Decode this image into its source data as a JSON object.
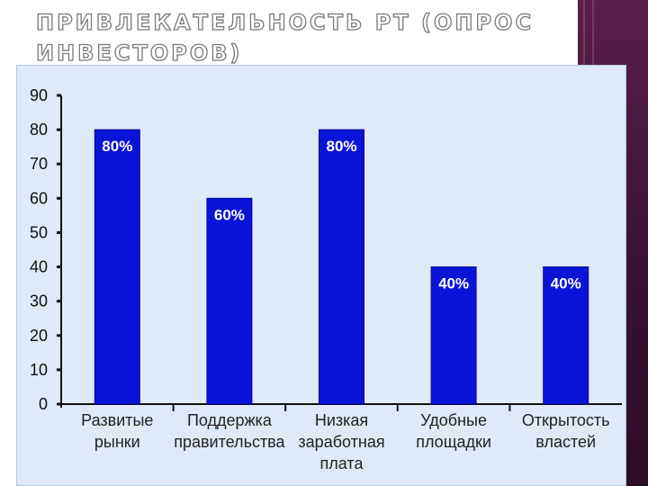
{
  "title": "Привлекательность РТ (опрос инвесторов)",
  "colors": {
    "bar": "#0a14d8",
    "bar_edge": "#000a8c",
    "panel": "#dfe9f7",
    "side_band": "#3a1232"
  },
  "chart_data": {
    "type": "bar",
    "title": "",
    "xlabel": "",
    "ylabel": "",
    "ylim": [
      0,
      90
    ],
    "yticks": [
      0,
      10,
      20,
      30,
      40,
      50,
      60,
      70,
      80,
      90
    ],
    "grid": false,
    "categories": [
      [
        "Развитые",
        "рынки"
      ],
      [
        "Поддержка",
        "правительства"
      ],
      [
        "Низкая",
        "заработная",
        "плата"
      ],
      [
        "Удобные",
        "площадки"
      ],
      [
        "Открытость",
        "властей"
      ]
    ],
    "values": [
      80,
      60,
      80,
      40,
      40
    ],
    "data_labels": [
      "80%",
      "60%",
      "80%",
      "40%",
      "40%"
    ]
  }
}
